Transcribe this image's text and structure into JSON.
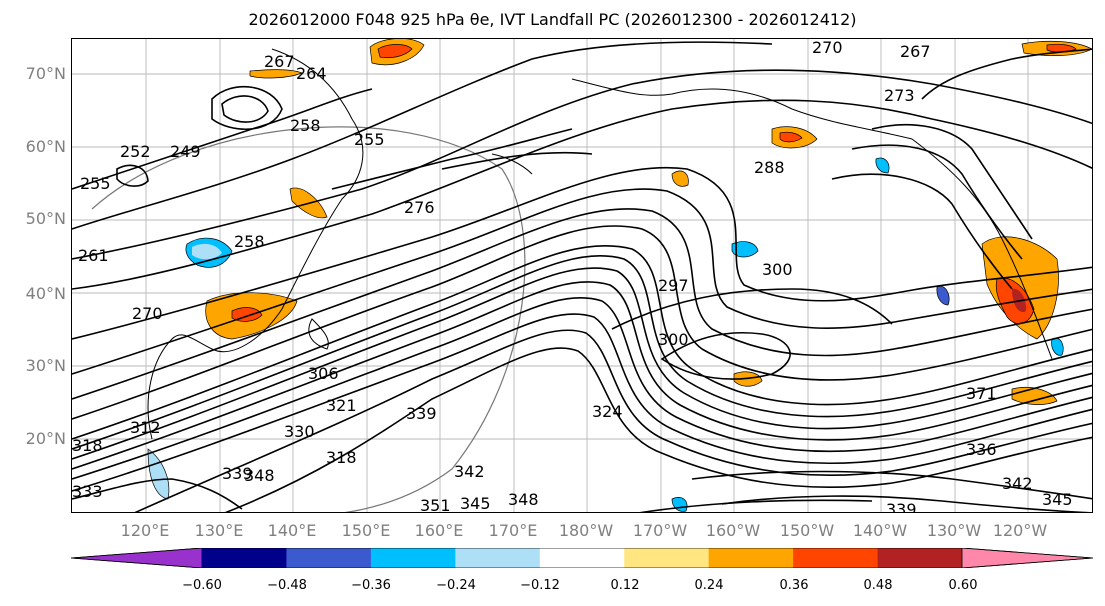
{
  "title": "2026012000 F048 925 hPa θe, IVT Landfall PC (2026012300 - 2026012412)",
  "lat_labels": [
    "70°N",
    "60°N",
    "50°N",
    "40°N",
    "30°N",
    "20°N"
  ],
  "lon_labels": [
    "120°E",
    "130°E",
    "140°E",
    "150°E",
    "160°E",
    "170°E",
    "180°W",
    "170°W",
    "160°W",
    "150°W",
    "140°W",
    "130°W",
    "120°W"
  ],
  "contour_labels": [
    "267",
    "264",
    "270",
    "267",
    "273",
    "258",
    "252",
    "249",
    "255",
    "255",
    "276",
    "288",
    "261",
    "270",
    "258",
    "297",
    "300",
    "300",
    "306",
    "321",
    "324",
    "312",
    "339",
    "330",
    "318",
    "339",
    "348",
    "342",
    "351",
    "345",
    "348",
    "339",
    "336",
    "342",
    "345",
    "371",
    "318",
    "333"
  ],
  "colorbar": {
    "ticks": [
      "−0.60",
      "−0.48",
      "−0.36",
      "−0.24",
      "−0.12",
      "0.12",
      "0.24",
      "0.36",
      "0.48",
      "0.60"
    ],
    "colors": [
      "#9932CC",
      "#00008B",
      "#3A5ACD",
      "#00BFFF",
      "#ADDFF7",
      "#FFFFFF",
      "#FFE680",
      "#FFA500",
      "#FF4500",
      "#B22222",
      "#FF88AA"
    ]
  }
}
